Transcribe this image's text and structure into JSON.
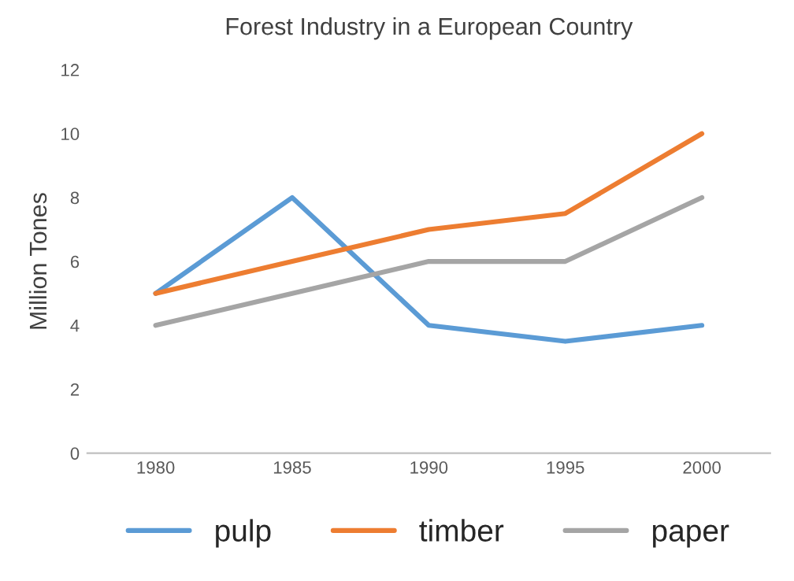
{
  "chart_data": {
    "type": "line",
    "title": "Forest Industry in a European Country",
    "ylabel": "Million Tones",
    "categories": [
      "1980",
      "1985",
      "1990",
      "1995",
      "2000"
    ],
    "series": [
      {
        "name": "pulp",
        "color": "#5b9bd5",
        "values": [
          5,
          8,
          4,
          3.5,
          4
        ]
      },
      {
        "name": "timber",
        "color": "#ed7d31",
        "values": [
          5,
          6,
          7,
          7.5,
          10
        ]
      },
      {
        "name": "paper",
        "color": "#a5a5a5",
        "values": [
          4,
          5,
          6,
          6,
          8
        ]
      }
    ],
    "ylim": [
      0,
      12
    ],
    "yticks": [
      0,
      2,
      4,
      6,
      8,
      10,
      12
    ],
    "grid": false,
    "legend": "bottom",
    "marker": "none",
    "line_style": "solid"
  }
}
